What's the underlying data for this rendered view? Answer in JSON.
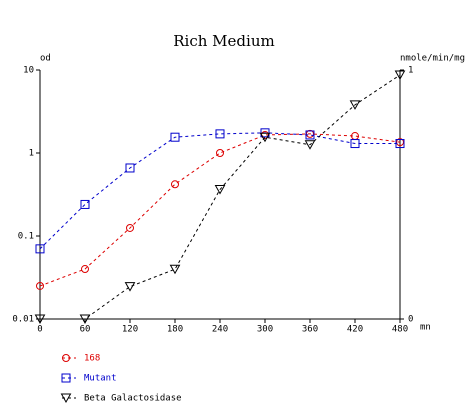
{
  "chart_data": {
    "type": "line",
    "title": "Rich Medium",
    "y_label": "od",
    "y2_label": "nmole/min/mg",
    "x_label": "mn",
    "x": [
      0,
      60,
      120,
      180,
      240,
      300,
      360,
      420,
      480
    ],
    "xlim": [
      0,
      480
    ],
    "xticks": [
      0,
      60,
      120,
      180,
      240,
      300,
      360,
      420,
      480
    ],
    "ylim": [
      0.01,
      10
    ],
    "yticks": [
      0.01,
      0.1,
      1,
      10
    ],
    "yscale": "log",
    "y2lim": [
      0,
      1
    ],
    "y2ticks": [
      0,
      1
    ],
    "series": [
      {
        "name": "168",
        "color": "#dd0000",
        "marker": "circle",
        "values": [
          0.025,
          0.04,
          0.125,
          0.42,
          1.0,
          1.65,
          1.7,
          1.6,
          1.35
        ]
      },
      {
        "name": "Mutant",
        "color": "#0000cc",
        "marker": "square",
        "values": [
          0.07,
          0.24,
          0.66,
          1.55,
          1.7,
          1.75,
          1.65,
          1.3,
          1.3
        ]
      },
      {
        "name": "Beta Galactosidase",
        "color": "#000000",
        "marker": "triangle",
        "axis": "y2",
        "values": [
          0,
          0,
          0.13,
          0.2,
          0.52,
          0.73,
          0.7,
          0.86,
          0.98
        ]
      }
    ]
  }
}
